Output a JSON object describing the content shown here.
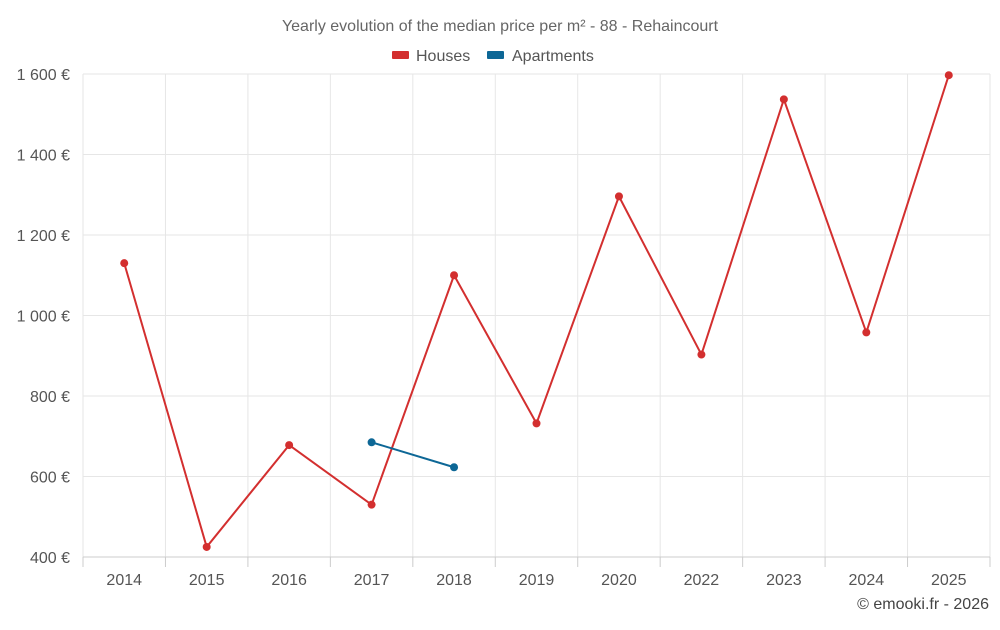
{
  "chart_data": {
    "type": "line",
    "title": "Yearly evolution of the median price per m² - 88 - Rehaincourt",
    "xlabel": "",
    "ylabel": "",
    "categories": [
      "2014",
      "2015",
      "2016",
      "2017",
      "2018",
      "2019",
      "2020",
      "2022",
      "2023",
      "2024",
      "2025"
    ],
    "ylim": [
      400,
      1600
    ],
    "yticks": [
      400,
      600,
      800,
      1000,
      1200,
      1400,
      1600
    ],
    "ytick_labels": [
      "400 €",
      "600 €",
      "800 €",
      "1 000 €",
      "1 200 €",
      "1 400 €",
      "1 600 €"
    ],
    "grid": true,
    "legend_position": "top-center",
    "series": [
      {
        "name": "Houses",
        "color": "#d32f2f",
        "values": [
          1130,
          425,
          678,
          530,
          1100,
          732,
          1296,
          903,
          1537,
          958,
          1597
        ]
      },
      {
        "name": "Apartments",
        "color": "#0d6796",
        "values": [
          null,
          null,
          null,
          685,
          623,
          null,
          null,
          null,
          null,
          null,
          null
        ]
      }
    ]
  },
  "footer": {
    "credit": "© emooki.fr - 2026"
  }
}
